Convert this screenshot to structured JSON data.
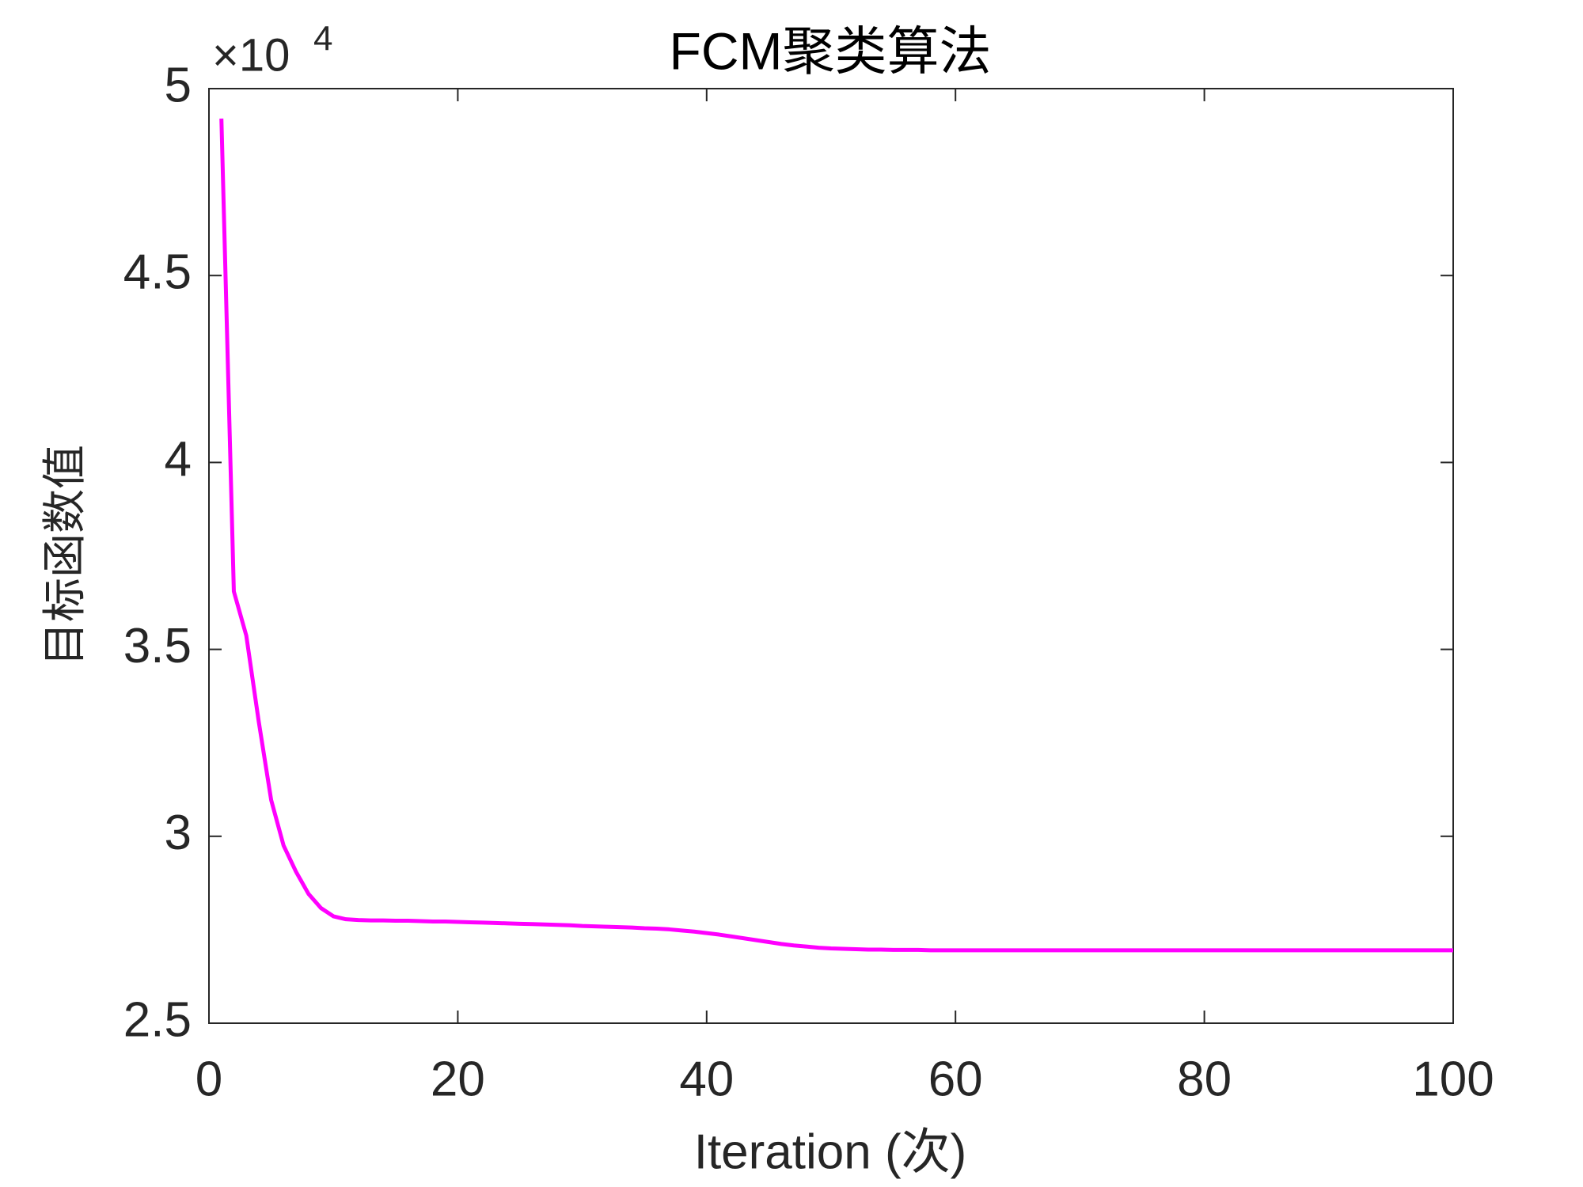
{
  "chart_data": {
    "type": "line",
    "title": "FCM聚类算法",
    "xlabel": "Iteration (次)",
    "ylabel": "目标函数值",
    "y_multiplier": {
      "base": "×10",
      "exponent": "4"
    },
    "color": "#ff00ff",
    "x": [
      1,
      2,
      3,
      4,
      5,
      6,
      7,
      8,
      9,
      10,
      11,
      12,
      13,
      14,
      15,
      16,
      17,
      18,
      19,
      20,
      21,
      22,
      23,
      24,
      25,
      26,
      27,
      28,
      29,
      30,
      31,
      32,
      33,
      34,
      35,
      36,
      37,
      38,
      39,
      40,
      41,
      42,
      43,
      44,
      45,
      46,
      47,
      48,
      49,
      50,
      51,
      52,
      53,
      54,
      55,
      56,
      57,
      58,
      59,
      60,
      61,
      62,
      63,
      64,
      65,
      66,
      67,
      68,
      69,
      70,
      71,
      72,
      73,
      74,
      75,
      76,
      77,
      78,
      79,
      80,
      81,
      82,
      83,
      84,
      85,
      86,
      87,
      88,
      89,
      90,
      91,
      92,
      93,
      94,
      95,
      96,
      97,
      98,
      99,
      100
    ],
    "values": [
      4.92,
      3.655,
      3.537,
      3.307,
      3.097,
      2.975,
      2.905,
      2.846,
      2.808,
      2.786,
      2.778,
      2.776,
      2.775,
      2.775,
      2.774,
      2.774,
      2.773,
      2.772,
      2.772,
      2.771,
      2.77,
      2.769,
      2.768,
      2.767,
      2.766,
      2.765,
      2.764,
      2.763,
      2.762,
      2.76,
      2.759,
      2.758,
      2.757,
      2.756,
      2.754,
      2.753,
      2.751,
      2.748,
      2.745,
      2.741,
      2.737,
      2.732,
      2.727,
      2.722,
      2.717,
      2.712,
      2.708,
      2.705,
      2.702,
      2.7,
      2.699,
      2.698,
      2.697,
      2.697,
      2.696,
      2.696,
      2.696,
      2.695,
      2.695,
      2.695,
      2.695,
      2.695,
      2.695,
      2.695,
      2.695,
      2.695,
      2.695,
      2.695,
      2.695,
      2.695,
      2.695,
      2.695,
      2.695,
      2.695,
      2.695,
      2.695,
      2.695,
      2.695,
      2.695,
      2.695,
      2.695,
      2.695,
      2.695,
      2.695,
      2.695,
      2.695,
      2.695,
      2.695,
      2.695,
      2.695,
      2.695,
      2.695,
      2.695,
      2.695,
      2.695,
      2.695,
      2.695,
      2.695,
      2.695,
      2.695
    ],
    "xlim": [
      0,
      100
    ],
    "xticks": [
      0,
      20,
      40,
      60,
      80,
      100
    ],
    "ylim": [
      2.5,
      5
    ],
    "yticks": [
      2.5,
      3,
      3.5,
      4,
      4.5,
      5
    ],
    "grid": false
  }
}
